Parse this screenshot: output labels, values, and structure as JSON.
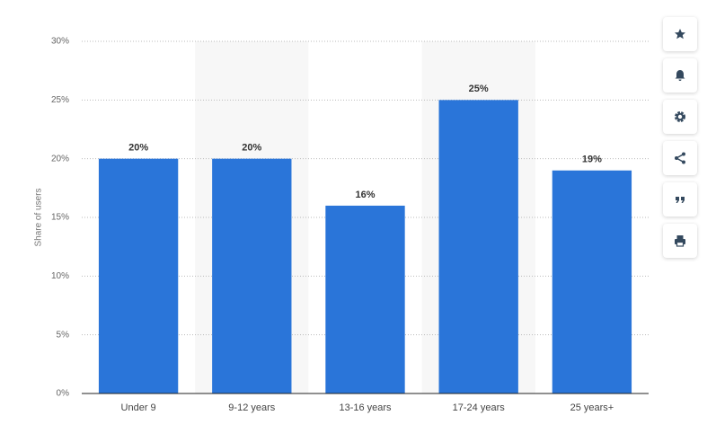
{
  "chart_data": {
    "type": "bar",
    "y_label": "Share of users",
    "categories": [
      "Under 9",
      "9-12 years",
      "13-16 years",
      "17-24 years",
      "25 years+"
    ],
    "values": [
      20,
      20,
      16,
      25,
      19
    ],
    "value_labels": [
      "20%",
      "20%",
      "16%",
      "25%",
      "19%"
    ],
    "color": "#2a75d9",
    "ylim": [
      0,
      30
    ],
    "yticks": [
      {
        "value": 0,
        "label": "0%"
      },
      {
        "value": 5,
        "label": "5%"
      },
      {
        "value": 10,
        "label": "10%"
      },
      {
        "value": 15,
        "label": "15%"
      },
      {
        "value": 20,
        "label": "20%"
      },
      {
        "value": 25,
        "label": "25%"
      },
      {
        "value": 30,
        "label": "30%"
      }
    ],
    "grid": true
  }
}
